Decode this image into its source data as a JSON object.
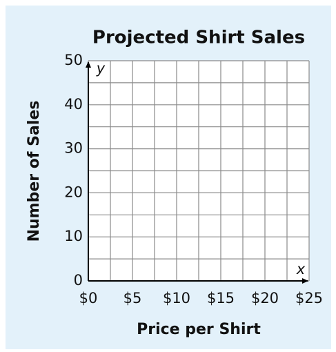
{
  "chart_data": {
    "type": "scatter",
    "title": "Projected Shirt Sales",
    "x_label": "Price per Shirt",
    "y_label": "Number of Sales",
    "x_axis_symbol": "x",
    "y_axis_symbol": "y",
    "xlim": [
      0,
      25
    ],
    "ylim": [
      0,
      50
    ],
    "xticks": [
      {
        "value": 0,
        "label": "$0"
      },
      {
        "value": 5,
        "label": "$5"
      },
      {
        "value": 10,
        "label": "$10"
      },
      {
        "value": 15,
        "label": "$15"
      },
      {
        "value": 20,
        "label": "$20"
      },
      {
        "value": 25,
        "label": "$25"
      }
    ],
    "yticks": [
      0,
      10,
      20,
      30,
      40,
      50
    ],
    "x_minor_ticks": [
      2.5,
      7.5,
      12.5,
      17.5,
      22.5
    ],
    "y_minor_ticks": [
      5,
      15,
      25,
      35,
      45
    ],
    "grid": true
  }
}
